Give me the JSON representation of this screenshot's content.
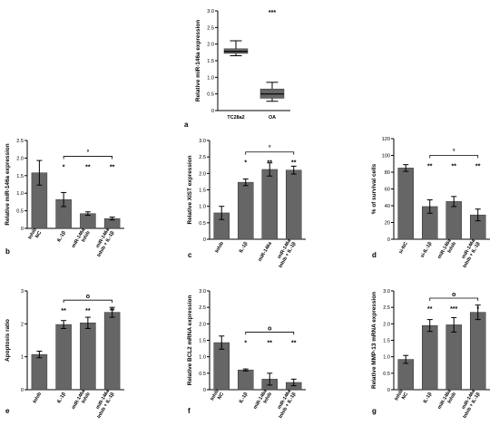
{
  "chart_data": [
    {
      "id": "a",
      "type": "box",
      "panel_letter": "a",
      "ylabel": "Relative miR-146a expression",
      "ylim": [
        0,
        3.0
      ],
      "yticks": [
        "0",
        "0.5",
        "1.0",
        "1.5",
        "2.0",
        "2.5",
        "3.0"
      ],
      "categories": [
        "TC28a2",
        "OA"
      ],
      "boxes": [
        {
          "min": 1.65,
          "q1": 1.72,
          "median": 1.78,
          "q3": 1.86,
          "max": 2.1
        },
        {
          "min": 0.28,
          "q1": 0.37,
          "median": 0.5,
          "q3": 0.65,
          "max": 0.85
        }
      ],
      "sig": [
        "",
        "***"
      ]
    },
    {
      "id": "b",
      "type": "bar",
      "panel_letter": "b",
      "ylabel": "Relative miR-146a expression",
      "ylim": [
        0,
        2.5
      ],
      "yticks": [
        "0",
        "0.5",
        "1.0",
        "1.5",
        "2.0",
        "2.5"
      ],
      "categories": [
        [
          "Inhib",
          "NC"
        ],
        [
          "IL-1β"
        ],
        [
          "miR-146a",
          "Inhib"
        ],
        [
          "miR-146a",
          "Inhib + IL-1β"
        ]
      ],
      "values": [
        1.58,
        0.82,
        0.42,
        0.28
      ],
      "errors": [
        0.35,
        0.2,
        0.05,
        0.04
      ],
      "sig": [
        "",
        "*",
        "**",
        "**"
      ],
      "bracket": {
        "from": 1,
        "to": 3,
        "label": "°",
        "y": 2.05
      }
    },
    {
      "id": "c",
      "type": "bar",
      "panel_letter": "c",
      "ylabel": "Relative XIST expression",
      "ylim": [
        0,
        3.0
      ],
      "yticks": [
        "0",
        "0.5",
        "1.0",
        "1.5",
        "2.0",
        "2.5",
        "3.0"
      ],
      "categories": [
        [
          "Inhib"
        ],
        [
          "IL-1β"
        ],
        [
          "miR-146a"
        ],
        [
          "miR-146a",
          "Inhib + IL-1β"
        ]
      ],
      "values": [
        0.8,
        1.73,
        2.12,
        2.1
      ],
      "errors": [
        0.2,
        0.1,
        0.2,
        0.12
      ],
      "sig": [
        "",
        "*",
        "**",
        "**"
      ],
      "bracket": {
        "from": 1,
        "to": 3,
        "label": "°",
        "y": 2.65
      }
    },
    {
      "id": "d",
      "type": "bar",
      "panel_letter": "d",
      "ylabel": "% of survival cells",
      "ylim": [
        0,
        120
      ],
      "yticks": [
        "0",
        "20",
        "40",
        "60",
        "80",
        "100",
        "120"
      ],
      "categories": [
        [
          "si-NC"
        ],
        [
          "si-IL-1β"
        ],
        [
          "miR-146a",
          "Inhib"
        ],
        [
          "miR-146a",
          "Inhib + IL-1β"
        ]
      ],
      "values": [
        85,
        39,
        45,
        29
      ],
      "errors": [
        4,
        8,
        6,
        7
      ],
      "sig": [
        "",
        "**",
        "**",
        "**"
      ],
      "bracket": {
        "from": 1,
        "to": 3,
        "label": "°",
        "y": 100
      }
    },
    {
      "id": "e",
      "type": "bar",
      "panel_letter": "e",
      "ylabel": "Apoptosis ratio",
      "ylim": [
        0,
        3
      ],
      "yticks": [
        "0",
        "1",
        "2",
        "3"
      ],
      "categories": [
        [
          "Inhib"
        ],
        [
          "IL-1β"
        ],
        [
          "miR-146a",
          "Inhib"
        ],
        [
          "miR-146a",
          "Inhib + IL-1β"
        ]
      ],
      "values": [
        1.07,
        1.98,
        2.03,
        2.35
      ],
      "errors": [
        0.1,
        0.12,
        0.17,
        0.15
      ],
      "sig": [
        "",
        "**",
        "**",
        "**"
      ],
      "bracket": {
        "from": 1,
        "to": 3,
        "label": "o",
        "y": 2.72
      }
    },
    {
      "id": "f",
      "type": "bar",
      "panel_letter": "f",
      "ylabel": "Relative BCL2 mRNA expression",
      "ylim": [
        0,
        3.0
      ],
      "yticks": [
        "0",
        "0.5",
        "1.0",
        "1.5",
        "2.0",
        "2.5",
        "3.0"
      ],
      "categories": [
        [
          "Inhib",
          "NC"
        ],
        [
          "IL-1β"
        ],
        [
          "miR-146a",
          "Inhib"
        ],
        [
          "miR-146a",
          "Inhib + IL-1β"
        ]
      ],
      "values": [
        1.43,
        0.6,
        0.32,
        0.22
      ],
      "errors": [
        0.2,
        0.03,
        0.18,
        0.1
      ],
      "sig": [
        "",
        "*",
        "**",
        "**"
      ],
      "bracket": {
        "from": 1,
        "to": 3,
        "label": "o",
        "y": 1.75
      }
    },
    {
      "id": "g",
      "type": "bar",
      "panel_letter": "g",
      "ylabel": "Relative MMP-13 mRNA expression",
      "ylim": [
        0,
        3.0
      ],
      "yticks": [
        "0",
        "0.5",
        "1.0",
        "1.5",
        "2.0",
        "2.5",
        "3.0"
      ],
      "categories": [
        [
          "Inhib",
          "NC"
        ],
        [
          "IL-1β"
        ],
        [
          "miR-146a",
          "Inhib"
        ],
        [
          "miR-146a",
          "Inhib + IL-1β"
        ]
      ],
      "values": [
        0.92,
        1.95,
        1.97,
        2.35
      ],
      "errors": [
        0.12,
        0.18,
        0.22,
        0.22
      ],
      "sig": [
        "",
        "**",
        "***",
        "*"
      ],
      "bracket": {
        "from": 1,
        "to": 3,
        "label": "o",
        "y": 2.78
      }
    }
  ]
}
